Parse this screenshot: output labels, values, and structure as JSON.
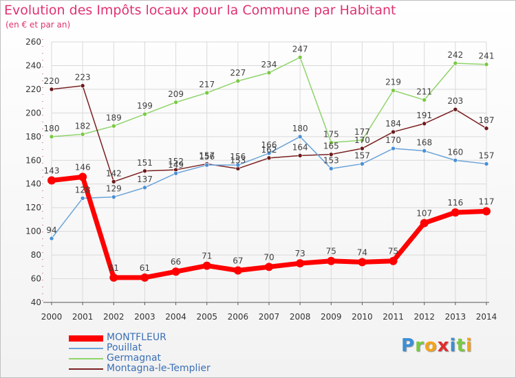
{
  "chart_data": {
    "type": "line",
    "title": "Evolution des Impôts locaux pour la Commune par Habitant",
    "subtitle": "(en € et par an)",
    "xlabel": "",
    "ylabel": "",
    "categories": [
      "2000",
      "2001",
      "2002",
      "2003",
      "2004",
      "2005",
      "2006",
      "2007",
      "2008",
      "2009",
      "2010",
      "2011",
      "2012",
      "2013",
      "2014"
    ],
    "ylim": [
      40,
      260
    ],
    "yticks": [
      40,
      60,
      80,
      100,
      120,
      140,
      160,
      180,
      200,
      220,
      240,
      260
    ],
    "grid": true,
    "legend_position": "bottom",
    "series": [
      {
        "name": "Germagnat",
        "color": "#8fd46a",
        "marker": "#7ac943",
        "style": "thin",
        "values": [
          180,
          182,
          189,
          199,
          209,
          217,
          227,
          234,
          247,
          175,
          177,
          219,
          211,
          242,
          241
        ],
        "labels": [
          "180",
          "182",
          "189",
          "199",
          "209",
          "217",
          "227",
          "234",
          "247",
          "175",
          "177",
          "219",
          "211",
          "242",
          "241"
        ]
      },
      {
        "name": "Montagna-le-Templier",
        "color": "#7a1f1f",
        "marker": "#6b1a1a",
        "style": "thin",
        "values": [
          220,
          223,
          142,
          151,
          152,
          157,
          153,
          162,
          164,
          165,
          170,
          184,
          191,
          203,
          187
        ],
        "labels": [
          "220",
          "223",
          "142",
          "151",
          "152",
          "157",
          "153",
          "162",
          "164",
          "165",
          "170",
          "184",
          "191",
          "203",
          "187"
        ]
      },
      {
        "name": "Pouillat",
        "color": "#6ba3d9",
        "marker": "#4a8fd6",
        "style": "thin",
        "values": [
          94,
          128,
          129,
          137,
          149,
          156,
          156,
          166,
          180,
          153,
          157,
          170,
          168,
          160,
          157
        ],
        "labels": [
          "94",
          "128",
          "129",
          "137",
          "149",
          "156",
          "156",
          "166",
          "180",
          "153",
          "157",
          "170",
          "168",
          "160",
          "157"
        ]
      },
      {
        "name": "MONTFLEUR",
        "color": "#ff0000",
        "marker": "#ff0000",
        "style": "thick",
        "values": [
          143,
          146,
          61,
          61,
          66,
          71,
          67,
          70,
          73,
          75,
          74,
          75,
          107,
          116,
          117
        ],
        "labels": [
          "143",
          "146",
          "61",
          "61",
          "66",
          "71",
          "67",
          "70",
          "73",
          "75",
          "74",
          "75",
          "107",
          "116",
          "117"
        ]
      }
    ],
    "legend": [
      {
        "name": "MONTFLEUR",
        "color": "#ff0000",
        "style": "thick"
      },
      {
        "name": "Pouillat",
        "color": "#6ba3d9",
        "style": "thin"
      },
      {
        "name": "Germagnat",
        "color": "#8fd46a",
        "style": "thin"
      },
      {
        "name": "Montagna-le-Templier",
        "color": "#7a1f1f",
        "style": "thin"
      }
    ]
  },
  "brand": {
    "name": "Proxiti",
    "letters": [
      "P",
      "r",
      "o",
      "x",
      "i",
      "t",
      "i"
    ],
    "colors": [
      "#3a8fd6",
      "#7ac943",
      "#f4a31a",
      "#e02d2d",
      "#3a8fd6",
      "#7ac943",
      "#f4a31a"
    ]
  }
}
